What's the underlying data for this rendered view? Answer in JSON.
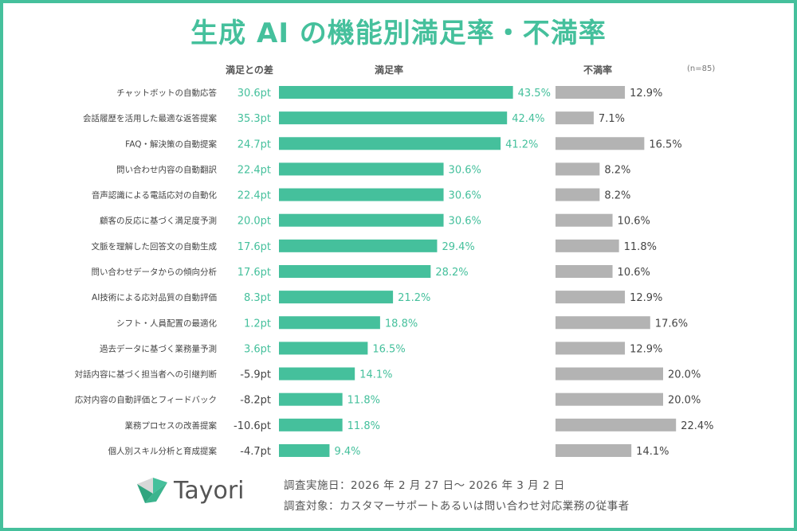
{
  "title": "生成 AI の機能別満足率・不満率",
  "headers": {
    "diff": "満足との差",
    "satisfied": "満足率",
    "dissatisfied": "不満率",
    "n": "(n=85)"
  },
  "colors": {
    "satisfied": "#45c09c",
    "dissatisfied": "#b3b3b3",
    "positive_diff": "#45c09c",
    "negative_diff": "#444444"
  },
  "chart_data": {
    "type": "bar",
    "orientation": "horizontal",
    "unit": "%",
    "categories": [
      "チャットボットの自動応答",
      "会話履歴を活用した最適な返答提案",
      "FAQ・解決策の自動提案",
      "問い合わせ内容の自動翻訳",
      "音声認識による電話応対の自動化",
      "顧客の反応に基づく満足度予測",
      "文脈を理解した回答文の自動生成",
      "問い合わせデータからの傾向分析",
      "AI技術による応対品質の自動評価",
      "シフト・人員配置の最適化",
      "過去データに基づく業務量予測",
      "対話内容に基づく担当者への引継判断",
      "応対内容の自動評価とフィードバック",
      "業務プロセスの改善提案",
      "個人別スキル分析と育成提案"
    ],
    "series": [
      {
        "name": "満足率",
        "values": [
          43.5,
          42.4,
          41.2,
          30.6,
          30.6,
          30.6,
          29.4,
          28.2,
          21.2,
          18.8,
          16.5,
          14.1,
          11.8,
          11.8,
          9.4
        ]
      },
      {
        "name": "不満率",
        "values": [
          12.9,
          7.1,
          16.5,
          8.2,
          8.2,
          10.6,
          11.8,
          10.6,
          12.9,
          17.6,
          12.9,
          20.0,
          20.0,
          22.4,
          14.1
        ]
      }
    ],
    "diff_label": "満足との差",
    "diff": [
      "30.6pt",
      "35.3pt",
      "24.7pt",
      "22.4pt",
      "22.4pt",
      "20.0pt",
      "17.6pt",
      "17.6pt",
      "8.3pt",
      "1.2pt",
      "3.6pt",
      "-5.9pt",
      "-8.2pt",
      "-10.6pt",
      "-4.7pt"
    ]
  },
  "footer": {
    "period": "調査実施日：2026 年 2 月 27 日～ 2026 年 3 月 2 日",
    "target": "調査対象：カスタマーサポートあるいは問い合わせ対応業務の従事者"
  },
  "logo": {
    "text": "Tayori",
    "icon": "paper-plane-logo-icon"
  }
}
